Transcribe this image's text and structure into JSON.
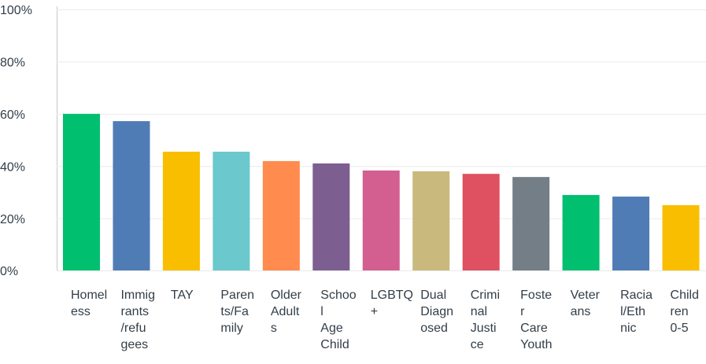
{
  "chart_data": {
    "type": "bar",
    "categories": [
      "Homeless",
      "Immigrants/refugees",
      "TAY",
      "Parents/Family",
      "Older Adults",
      "School Age Child",
      "LGBTQ+",
      "Dual Diagnosed",
      "Criminal Justice",
      "Foster Care Youth",
      "Veterans",
      "Racial/Ethnic",
      "Children 0-5"
    ],
    "values": [
      60,
      57.2,
      45.5,
      45.5,
      41.9,
      41,
      38.3,
      38,
      37,
      35.8,
      28.9,
      28.3,
      25
    ],
    "colors": [
      "#00bf6f",
      "#507cb6",
      "#f9be00",
      "#6bc8cd",
      "#ff8b4f",
      "#7d5e90",
      "#d25f90",
      "#c9b97c",
      "#df5160",
      "#747e87",
      "#00bf6f",
      "#507cb6",
      "#f9be00"
    ],
    "ylim": [
      0,
      100
    ],
    "yticks": [
      {
        "value": 0,
        "label": "0%"
      },
      {
        "value": 20,
        "label": "20%"
      },
      {
        "value": 40,
        "label": "40%"
      },
      {
        "value": 60,
        "label": "60%"
      },
      {
        "value": 80,
        "label": "80%"
      },
      {
        "value": 100,
        "label": "100%"
      }
    ],
    "grid": true
  }
}
